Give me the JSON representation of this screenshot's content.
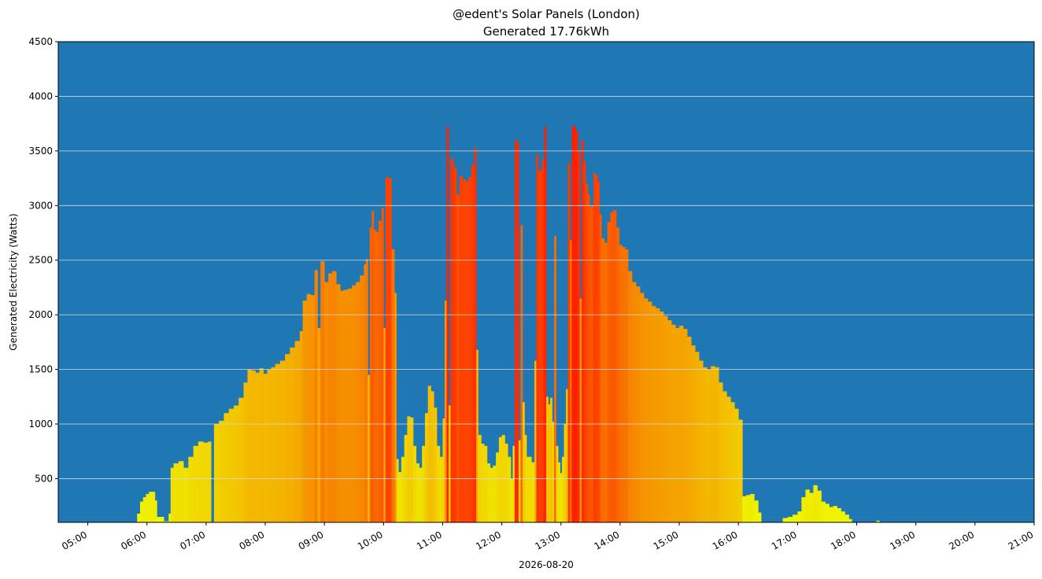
{
  "chart_data": {
    "type": "bar",
    "title": "@edent's Solar Panels (London)",
    "subtitle": "Generated 17.76kWh",
    "xlabel": "2026-08-20",
    "ylabel": "Generated Electricity (Watts)",
    "ylim": [
      100,
      4500
    ],
    "xlim": [
      "04:30",
      "21:00"
    ],
    "x_ticks": [
      "05:00",
      "06:00",
      "07:00",
      "08:00",
      "09:00",
      "10:00",
      "11:00",
      "12:00",
      "13:00",
      "14:00",
      "15:00",
      "16:00",
      "17:00",
      "18:00",
      "19:00",
      "20:00",
      "21:00"
    ],
    "y_ticks": [
      500,
      1000,
      1500,
      2000,
      2500,
      3000,
      3500,
      4000,
      4500
    ],
    "grid": "horizontal",
    "background_color": "#1f77b4",
    "grid_color": "#d9d9d9",
    "color_scale": {
      "low": "#eeff00",
      "mid": "#f59a00",
      "high": "#ff1a00"
    },
    "series": [
      {
        "points": [
          [
            "05:50",
            180
          ],
          [
            "05:53",
            290
          ],
          [
            "05:56",
            330
          ],
          [
            "05:59",
            360
          ],
          [
            "06:02",
            380
          ],
          [
            "06:05",
            380
          ],
          [
            "06:08",
            300
          ],
          [
            "06:10",
            150
          ],
          [
            "06:13",
            150
          ],
          [
            "06:17",
            110
          ],
          [
            "06:22",
            180
          ],
          [
            "06:24",
            600
          ],
          [
            "06:27",
            640
          ],
          [
            "06:32",
            660
          ],
          [
            "06:37",
            600
          ],
          [
            "06:42",
            700
          ],
          [
            "06:47",
            800
          ],
          [
            "06:52",
            840
          ],
          [
            "06:57",
            830
          ],
          [
            "07:02",
            840
          ],
          [
            "07:08",
            1000
          ],
          [
            "07:13",
            1030
          ],
          [
            "07:18",
            1100
          ],
          [
            "07:23",
            1140
          ],
          [
            "07:28",
            1170
          ],
          [
            "07:33",
            1240
          ],
          [
            "07:38",
            1380
          ],
          [
            "07:42",
            1500
          ],
          [
            "07:46",
            1490
          ],
          [
            "07:50",
            1470
          ],
          [
            "07:54",
            1510
          ],
          [
            "07:58",
            1460
          ],
          [
            "08:02",
            1500
          ],
          [
            "08:06",
            1520
          ],
          [
            "08:10",
            1550
          ],
          [
            "08:15",
            1580
          ],
          [
            "08:20",
            1640
          ],
          [
            "08:25",
            1700
          ],
          [
            "08:30",
            1760
          ],
          [
            "08:35",
            1850
          ],
          [
            "08:38",
            2130
          ],
          [
            "08:42",
            2190
          ],
          [
            "08:46",
            2180
          ],
          [
            "08:50",
            2410
          ],
          [
            "08:53",
            1880
          ],
          [
            "08:56",
            2490
          ],
          [
            "09:00",
            2300
          ],
          [
            "09:04",
            2380
          ],
          [
            "09:08",
            2400
          ],
          [
            "09:12",
            2280
          ],
          [
            "09:16",
            2220
          ],
          [
            "09:20",
            2230
          ],
          [
            "09:24",
            2240
          ],
          [
            "09:28",
            2270
          ],
          [
            "09:32",
            2300
          ],
          [
            "09:36",
            2360
          ],
          [
            "09:40",
            2460
          ],
          [
            "09:42",
            2510
          ],
          [
            "09:44",
            1450
          ],
          [
            "09:46",
            2800
          ],
          [
            "09:48",
            2950
          ],
          [
            "09:50",
            2780
          ],
          [
            "09:52",
            2760
          ],
          [
            "09:55",
            2860
          ],
          [
            "09:58",
            2980
          ],
          [
            "10:00",
            1880
          ],
          [
            "10:02",
            3260
          ],
          [
            "10:05",
            3250
          ],
          [
            "10:08",
            2600
          ],
          [
            "10:11",
            2200
          ],
          [
            "10:13",
            680
          ],
          [
            "10:15",
            560
          ],
          [
            "10:18",
            700
          ],
          [
            "10:21",
            900
          ],
          [
            "10:24",
            1070
          ],
          [
            "10:27",
            1060
          ],
          [
            "10:30",
            800
          ],
          [
            "10:33",
            640
          ],
          [
            "10:36",
            600
          ],
          [
            "10:39",
            800
          ],
          [
            "10:42",
            1100
          ],
          [
            "10:45",
            1350
          ],
          [
            "10:48",
            1300
          ],
          [
            "10:51",
            1150
          ],
          [
            "10:54",
            800
          ],
          [
            "10:57",
            700
          ],
          [
            "11:00",
            1050
          ],
          [
            "11:02",
            2130
          ],
          [
            "11:04",
            3720
          ],
          [
            "11:06",
            1170
          ],
          [
            "11:08",
            3430
          ],
          [
            "11:11",
            3350
          ],
          [
            "11:14",
            3100
          ],
          [
            "11:17",
            3270
          ],
          [
            "11:20",
            3240
          ],
          [
            "11:23",
            3220
          ],
          [
            "11:26",
            3260
          ],
          [
            "11:29",
            3370
          ],
          [
            "11:32",
            3530
          ],
          [
            "11:34",
            1680
          ],
          [
            "11:36",
            900
          ],
          [
            "11:39",
            820
          ],
          [
            "11:42",
            800
          ],
          [
            "11:45",
            640
          ],
          [
            "11:48",
            600
          ],
          [
            "11:51",
            620
          ],
          [
            "11:54",
            740
          ],
          [
            "11:57",
            880
          ],
          [
            "12:00",
            900
          ],
          [
            "12:03",
            820
          ],
          [
            "12:06",
            700
          ],
          [
            "12:09",
            500
          ],
          [
            "12:11",
            800
          ],
          [
            "12:13",
            3600
          ],
          [
            "12:15",
            3580
          ],
          [
            "12:17",
            850
          ],
          [
            "12:19",
            2820
          ],
          [
            "12:21",
            1200
          ],
          [
            "12:23",
            900
          ],
          [
            "12:25",
            700
          ],
          [
            "12:27",
            700
          ],
          [
            "12:30",
            650
          ],
          [
            "12:33",
            1580
          ],
          [
            "12:35",
            3470
          ],
          [
            "12:37",
            3310
          ],
          [
            "12:39",
            3330
          ],
          [
            "12:41",
            3420
          ],
          [
            "12:43",
            3720
          ],
          [
            "12:45",
            1250
          ],
          [
            "12:47",
            1180
          ],
          [
            "12:49",
            1240
          ],
          [
            "12:51",
            1020
          ],
          [
            "12:53",
            2720
          ],
          [
            "12:55",
            800
          ],
          [
            "12:57",
            650
          ],
          [
            "12:59",
            550
          ],
          [
            "13:01",
            700
          ],
          [
            "13:03",
            1000
          ],
          [
            "13:05",
            1320
          ],
          [
            "13:07",
            3390
          ],
          [
            "13:09",
            2680
          ],
          [
            "13:11",
            3730
          ],
          [
            "13:13",
            3720
          ],
          [
            "13:15",
            3680
          ],
          [
            "13:17",
            3500
          ],
          [
            "13:19",
            2150
          ],
          [
            "13:21",
            3600
          ],
          [
            "13:23",
            3400
          ],
          [
            "13:25",
            3200
          ],
          [
            "13:27",
            3100
          ],
          [
            "13:29",
            2990
          ],
          [
            "13:31",
            3000
          ],
          [
            "13:33",
            3300
          ],
          [
            "13:35",
            3280
          ],
          [
            "13:37",
            3220
          ],
          [
            "13:39",
            2920
          ],
          [
            "13:41",
            2700
          ],
          [
            "13:44",
            2660
          ],
          [
            "13:47",
            2850
          ],
          [
            "13:50",
            2940
          ],
          [
            "13:53",
            2960
          ],
          [
            "13:56",
            2800
          ],
          [
            "13:59",
            2640
          ],
          [
            "14:02",
            2620
          ],
          [
            "14:05",
            2600
          ],
          [
            "14:08",
            2400
          ],
          [
            "14:12",
            2300
          ],
          [
            "14:16",
            2260
          ],
          [
            "14:20",
            2200
          ],
          [
            "14:24",
            2150
          ],
          [
            "14:28",
            2120
          ],
          [
            "14:32",
            2080
          ],
          [
            "14:36",
            2060
          ],
          [
            "14:40",
            2030
          ],
          [
            "14:44",
            1990
          ],
          [
            "14:48",
            1950
          ],
          [
            "14:52",
            1910
          ],
          [
            "14:56",
            1880
          ],
          [
            "15:00",
            1900
          ],
          [
            "15:04",
            1870
          ],
          [
            "15:08",
            1800
          ],
          [
            "15:12",
            1720
          ],
          [
            "15:16",
            1660
          ],
          [
            "15:20",
            1580
          ],
          [
            "15:24",
            1520
          ],
          [
            "15:28",
            1500
          ],
          [
            "15:32",
            1530
          ],
          [
            "15:36",
            1520
          ],
          [
            "15:40",
            1380
          ],
          [
            "15:44",
            1300
          ],
          [
            "15:48",
            1250
          ],
          [
            "15:52",
            1200
          ],
          [
            "15:56",
            1140
          ],
          [
            "16:00",
            1040
          ],
          [
            "16:04",
            340
          ],
          [
            "16:08",
            350
          ],
          [
            "16:12",
            360
          ],
          [
            "16:16",
            300
          ],
          [
            "16:20",
            190
          ],
          [
            "16:45",
            140
          ],
          [
            "16:50",
            150
          ],
          [
            "16:55",
            170
          ],
          [
            "17:00",
            200
          ],
          [
            "17:04",
            330
          ],
          [
            "17:08",
            400
          ],
          [
            "17:12",
            370
          ],
          [
            "17:16",
            440
          ],
          [
            "17:20",
            390
          ],
          [
            "17:24",
            290
          ],
          [
            "17:28",
            270
          ],
          [
            "17:32",
            240
          ],
          [
            "17:36",
            250
          ],
          [
            "17:40",
            230
          ],
          [
            "17:44",
            200
          ],
          [
            "17:48",
            170
          ],
          [
            "17:52",
            130
          ],
          [
            "18:20",
            115
          ]
        ]
      }
    ]
  }
}
